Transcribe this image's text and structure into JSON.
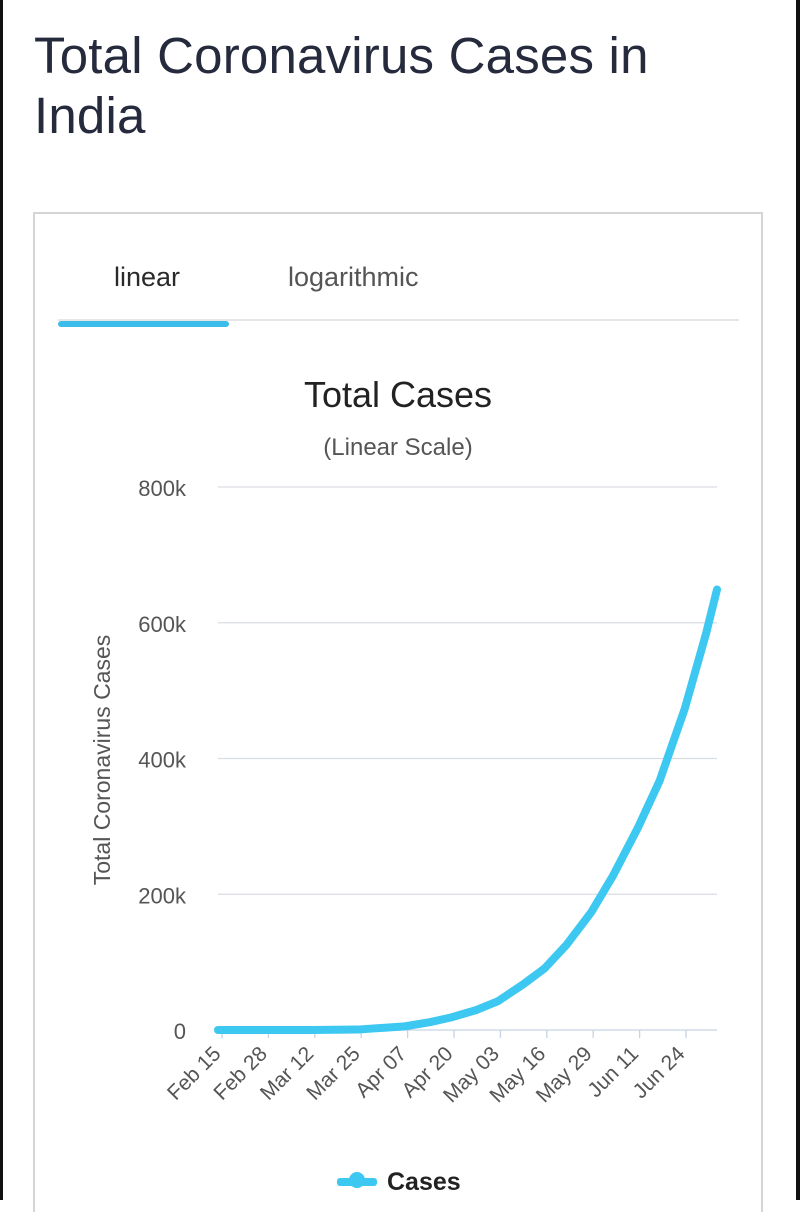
{
  "page": {
    "title": "Total Coronavirus Cases in India"
  },
  "tabs": [
    {
      "label": "linear",
      "active": true
    },
    {
      "label": "logarithmic",
      "active": false
    }
  ],
  "colors": {
    "accent": "#3bbde9",
    "series": "#3cc8f0",
    "title_text": "#262a3d",
    "grid": "#d9dde3"
  },
  "chart_data": {
    "type": "line",
    "title": "Total Cases",
    "subtitle": "(Linear Scale)",
    "xlabel": "",
    "ylabel": "Total Coronavirus Cases",
    "x_tick_labels": [
      "Feb 15",
      "Feb 28",
      "Mar 12",
      "Mar 25",
      "Apr 07",
      "Apr 20",
      "May 03",
      "May 16",
      "May 29",
      "Jun 11",
      "Jun 24"
    ],
    "y_tick_labels": [
      "0",
      "200k",
      "400k",
      "600k",
      "800k"
    ],
    "y_ticks": [
      0,
      200000,
      400000,
      600000,
      800000
    ],
    "ylim": [
      0,
      800000
    ],
    "x_start": "2020-02-15",
    "x_end": "2020-07-03",
    "grid": true,
    "legend_position": "bottom",
    "series": [
      {
        "name": "Cases",
        "x": [
          "2020-02-15",
          "2020-02-28",
          "2020-03-12",
          "2020-03-25",
          "2020-04-07",
          "2020-04-14",
          "2020-04-20",
          "2020-04-27",
          "2020-05-03",
          "2020-05-10",
          "2020-05-16",
          "2020-05-22",
          "2020-05-29",
          "2020-06-04",
          "2020-06-11",
          "2020-06-17",
          "2020-06-24",
          "2020-06-30",
          "2020-07-03"
        ],
        "values": [
          3,
          3,
          73,
          657,
          5350,
          11500,
          18600,
          29500,
          42500,
          67200,
          90900,
          125000,
          173800,
          227000,
          298300,
          367000,
          473000,
          585000,
          649000
        ]
      }
    ]
  }
}
